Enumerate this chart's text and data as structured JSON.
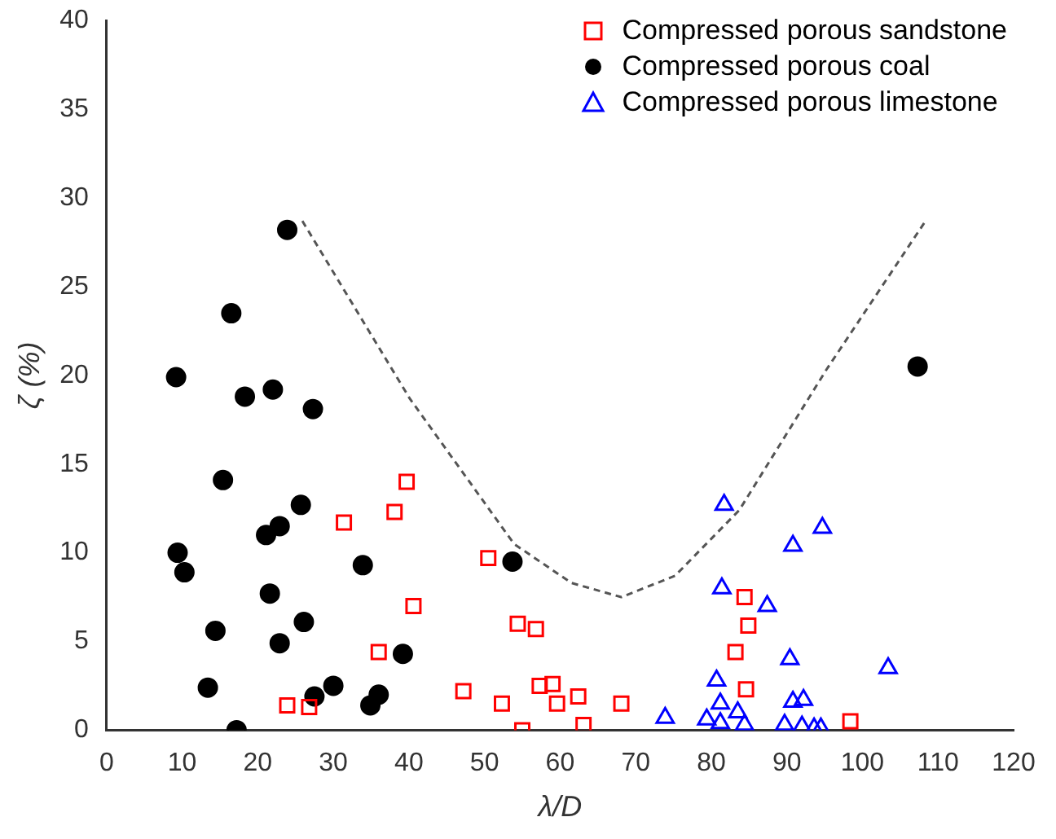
{
  "chart_data": {
    "type": "scatter",
    "xlabel": "λ/D",
    "ylabel": "ζ (%)",
    "xlim": [
      0,
      120
    ],
    "ylim": [
      0,
      40
    ],
    "xticks": [
      0,
      10,
      20,
      30,
      40,
      50,
      60,
      70,
      80,
      90,
      100,
      110,
      120
    ],
    "yticks": [
      0,
      5,
      10,
      15,
      20,
      25,
      30,
      35,
      40
    ],
    "grid": false,
    "legend": "top right",
    "series": [
      {
        "name": "Compressed porous sandstone",
        "color": "#ff0000",
        "marker": "square",
        "x": [
          39.7,
          38.1,
          31.4,
          40.6,
          50.5,
          36.0,
          23.9,
          26.8,
          47.2,
          52.3,
          54.4,
          56.8,
          55.0,
          57.3,
          59.0,
          59.6,
          62.4,
          63.1,
          68.1,
          84.4,
          84.9,
          83.2,
          84.6,
          98.4
        ],
        "values": [
          14.0,
          12.3,
          11.7,
          7.0,
          9.7,
          4.4,
          1.4,
          1.3,
          2.2,
          1.5,
          6.0,
          5.7,
          0.0,
          2.5,
          2.6,
          1.5,
          1.9,
          0.3,
          1.5,
          7.5,
          5.9,
          4.4,
          2.3,
          0.5
        ]
      },
      {
        "name": "Compressed porous coal",
        "color": "#000000",
        "marker": "circle",
        "x": [
          23.9,
          16.5,
          9.2,
          18.3,
          22.0,
          27.3,
          15.4,
          25.7,
          22.9,
          21.1,
          33.9,
          53.7,
          9.4,
          10.3,
          21.6,
          26.1,
          14.4,
          22.9,
          39.2,
          13.4,
          30.0,
          27.5,
          36.0,
          34.9,
          17.2,
          107.3
        ],
        "values": [
          28.2,
          23.5,
          19.9,
          18.8,
          19.2,
          18.1,
          14.1,
          12.7,
          11.5,
          11.0,
          9.3,
          9.5,
          10.0,
          8.9,
          7.7,
          6.1,
          5.6,
          4.9,
          4.3,
          2.4,
          2.5,
          1.9,
          2.0,
          1.4,
          0.0,
          20.5
        ]
      },
      {
        "name": "Compressed porous limestone",
        "color": "#0000ff",
        "marker": "triangle",
        "x": [
          81.7,
          94.7,
          90.8,
          81.4,
          87.4,
          90.4,
          103.4,
          80.7,
          81.2,
          73.9,
          79.4,
          83.5,
          81.2,
          84.4,
          90.8,
          92.2,
          89.7,
          92.0,
          93.6,
          94.5
        ],
        "values": [
          12.7,
          11.4,
          10.4,
          8.0,
          7.0,
          4.0,
          3.5,
          2.8,
          1.5,
          0.7,
          0.6,
          1.0,
          0.4,
          0.3,
          1.6,
          1.7,
          0.3,
          0.2,
          0.1,
          0.1
        ]
      },
      {
        "type": "line",
        "color": "#555555",
        "marker": "none",
        "line_style": "dashed",
        "x": [
          25.9,
          40.1,
          53.9,
          61.5,
          68.1,
          75.2,
          83.7,
          95.2,
          108.5
        ],
        "values": [
          28.7,
          18.7,
          10.5,
          8.3,
          7.5,
          8.7,
          12.4,
          20.3,
          28.8
        ]
      }
    ]
  }
}
